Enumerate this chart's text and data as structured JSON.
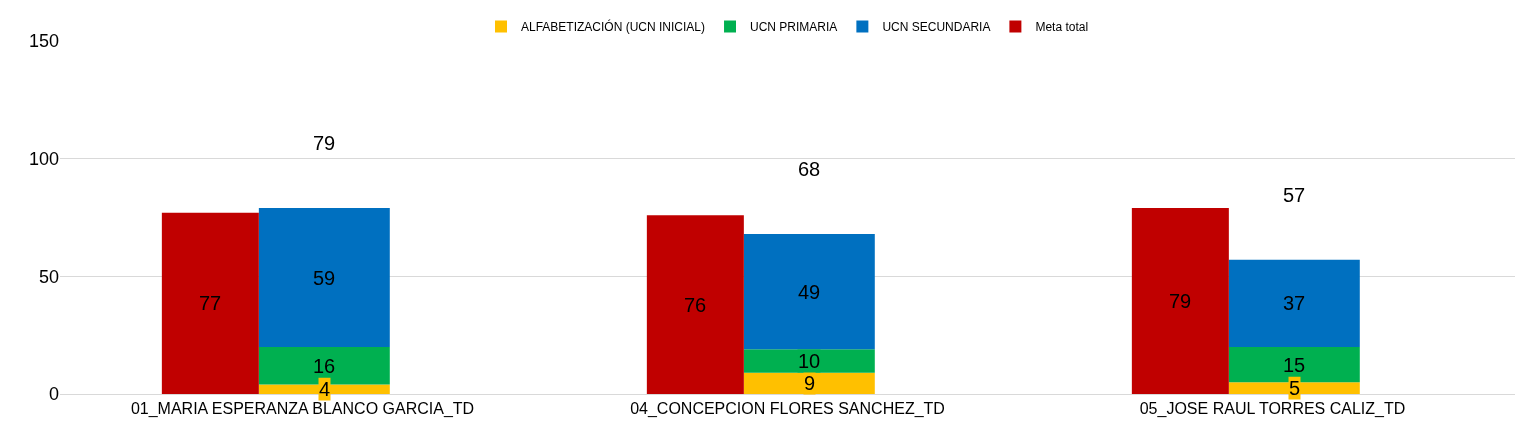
{
  "chart_data": {
    "type": "bar",
    "stacked": true,
    "categories": [
      "01_MARIA ESPERANZA BLANCO GARCIA_TD",
      "04_CONCEPCION FLORES SANCHEZ_TD",
      "05_JOSE RAUL TORRES CALIZ_TD"
    ],
    "series": [
      {
        "name": "ALFABETIZACIÓN (UCN INICIAL)",
        "color": "#ffc000",
        "values": [
          4,
          9,
          5
        ]
      },
      {
        "name": "UCN PRIMARIA",
        "color": "#00b050",
        "values": [
          16,
          10,
          15
        ]
      },
      {
        "name": "UCN SECUNDARIA",
        "color": "#0070c0",
        "values": [
          59,
          49,
          37
        ]
      },
      {
        "name": "Meta total",
        "color": "#c00000",
        "axis": "y2",
        "values": [
          77,
          76,
          79
        ]
      }
    ],
    "totals": [
      "79",
      "68",
      "57"
    ],
    "data_labels": true,
    "ylim": [
      0,
      150
    ],
    "yticks": [
      0,
      50,
      100,
      150
    ],
    "grid": "y",
    "legend": "top"
  }
}
